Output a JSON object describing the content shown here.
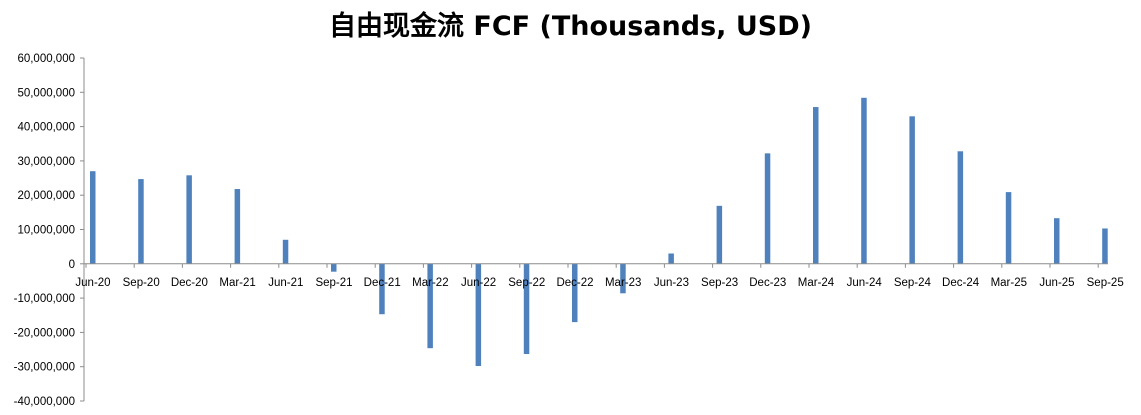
{
  "chart_data": {
    "type": "bar",
    "title": "自由现金流 FCF (Thousands, USD)",
    "xlabel": "",
    "ylabel": "",
    "ylim": [
      -40000000,
      60000000
    ],
    "yticks": [
      60000000,
      50000000,
      40000000,
      30000000,
      20000000,
      10000000,
      0,
      -10000000,
      -20000000,
      -30000000,
      -40000000
    ],
    "ytick_labels": [
      "60,000,000",
      "50,000,000",
      "40,000,000",
      "30,000,000",
      "20,000,000",
      "10,000,000",
      "0",
      "-10,000,000",
      "-20,000,000",
      "-30,000,000",
      "-40,000,000"
    ],
    "categories": [
      "Jun-20",
      "Sep-20",
      "Dec-20",
      "Mar-21",
      "Jun-21",
      "Sep-21",
      "Dec-21",
      "Mar-22",
      "Jun-22",
      "Sep-22",
      "Dec-22",
      "Mar-23",
      "Jun-23",
      "Sep-23",
      "Dec-23",
      "Mar-24",
      "Jun-24",
      "Sep-24",
      "Dec-24",
      "Mar-25",
      "Jun-25",
      "Sep-25"
    ],
    "values": [
      27000000,
      24700000,
      25800000,
      21800000,
      7000000,
      -2300000,
      -14700000,
      -24600000,
      -29800000,
      -26300000,
      -17000000,
      -8600000,
      3000000,
      16900000,
      32200000,
      45700000,
      48400000,
      43000000,
      32800000,
      20900000,
      13300000,
      10300000
    ],
    "grid": false,
    "legend": "none",
    "bar_color": "#4f81bd",
    "axis_color": "#8c8c8c"
  }
}
